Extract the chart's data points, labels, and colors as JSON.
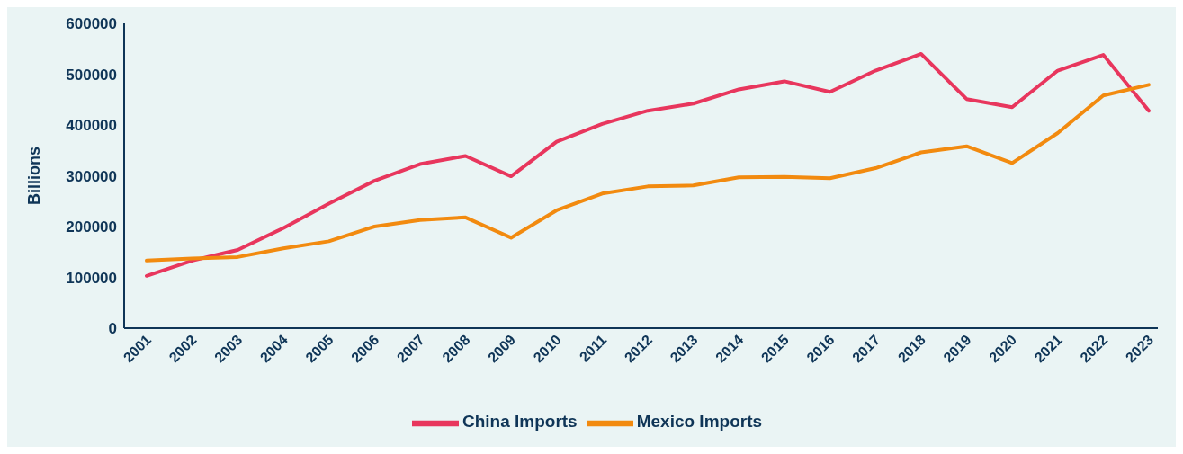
{
  "chart_data": {
    "type": "line",
    "ylabel": "Billions",
    "categories": [
      "2001",
      "2002",
      "2003",
      "2004",
      "2005",
      "2006",
      "2007",
      "2008",
      "2009",
      "2010",
      "2011",
      "2012",
      "2013",
      "2014",
      "2015",
      "2016",
      "2017",
      "2018",
      "2019",
      "2020",
      "2021",
      "2022",
      "2023"
    ],
    "series": [
      {
        "name": "China Imports",
        "color": "#e8365d",
        "values": [
          103000,
          133000,
          154000,
          197000,
          245000,
          290000,
          323000,
          339000,
          299000,
          367000,
          402000,
          428000,
          442000,
          470000,
          486000,
          465000,
          507000,
          540000,
          451000,
          435000,
          507000,
          538000,
          428000
        ]
      },
      {
        "name": "Mexico Imports",
        "color": "#f28a0f",
        "values": [
          133000,
          137000,
          140000,
          157000,
          171000,
          200000,
          213000,
          218000,
          178000,
          232000,
          265000,
          279000,
          281000,
          297000,
          298000,
          295000,
          315000,
          346000,
          358000,
          325000,
          384000,
          458000,
          479000
        ]
      }
    ],
    "ylim": [
      0,
      600000
    ],
    "yticks": [
      0,
      100000,
      200000,
      300000,
      400000,
      500000,
      600000
    ],
    "grid": false,
    "legend": "bottom",
    "marker": "none",
    "line_style": "solid"
  }
}
